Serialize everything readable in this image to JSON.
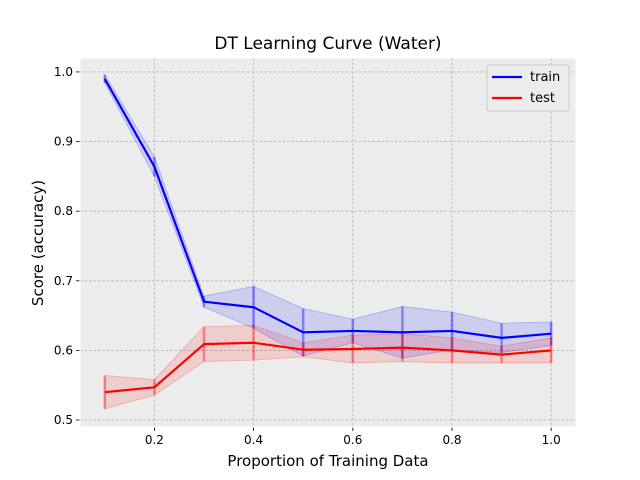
{
  "chart_data": {
    "type": "line",
    "title": "DT Learning Curve (Water)",
    "xlabel": "Proportion of Training Data",
    "ylabel": "Score (accuracy)",
    "xlim": [
      0.05,
      1.05
    ],
    "ylim": [
      0.49,
      1.02
    ],
    "xticks": [
      0.2,
      0.4,
      0.6,
      0.8,
      1.0
    ],
    "xtick_labels": [
      "0.2",
      "0.4",
      "0.6",
      "0.8",
      "1.0"
    ],
    "yticks": [
      0.5,
      0.6,
      0.7,
      0.8,
      0.9,
      1.0
    ],
    "ytick_labels": [
      "0.5",
      "0.6",
      "0.7",
      "0.8",
      "0.9",
      "1.0"
    ],
    "grid": true,
    "legend_position": "top-right",
    "x": [
      0.1,
      0.2,
      0.3,
      0.4,
      0.5,
      0.6,
      0.7,
      0.8,
      0.9,
      1.0
    ],
    "series": [
      {
        "name": "train",
        "color": "#0000ff",
        "values": [
          0.99,
          0.864,
          0.67,
          0.662,
          0.626,
          0.628,
          0.626,
          0.628,
          0.618,
          0.624
        ],
        "lower": [
          0.984,
          0.85,
          0.662,
          0.632,
          0.592,
          0.611,
          0.589,
          0.601,
          0.597,
          0.607
        ],
        "upper": [
          0.996,
          0.878,
          0.678,
          0.692,
          0.66,
          0.645,
          0.663,
          0.655,
          0.639,
          0.641
        ]
      },
      {
        "name": "test",
        "color": "#ff0000",
        "values": [
          0.54,
          0.547,
          0.609,
          0.611,
          0.601,
          0.602,
          0.604,
          0.6,
          0.594,
          0.6
        ],
        "lower": [
          0.516,
          0.536,
          0.584,
          0.586,
          0.591,
          0.582,
          0.584,
          0.582,
          0.582,
          0.582
        ],
        "upper": [
          0.564,
          0.558,
          0.634,
          0.636,
          0.611,
          0.622,
          0.624,
          0.618,
          0.606,
          0.618
        ]
      }
    ]
  }
}
